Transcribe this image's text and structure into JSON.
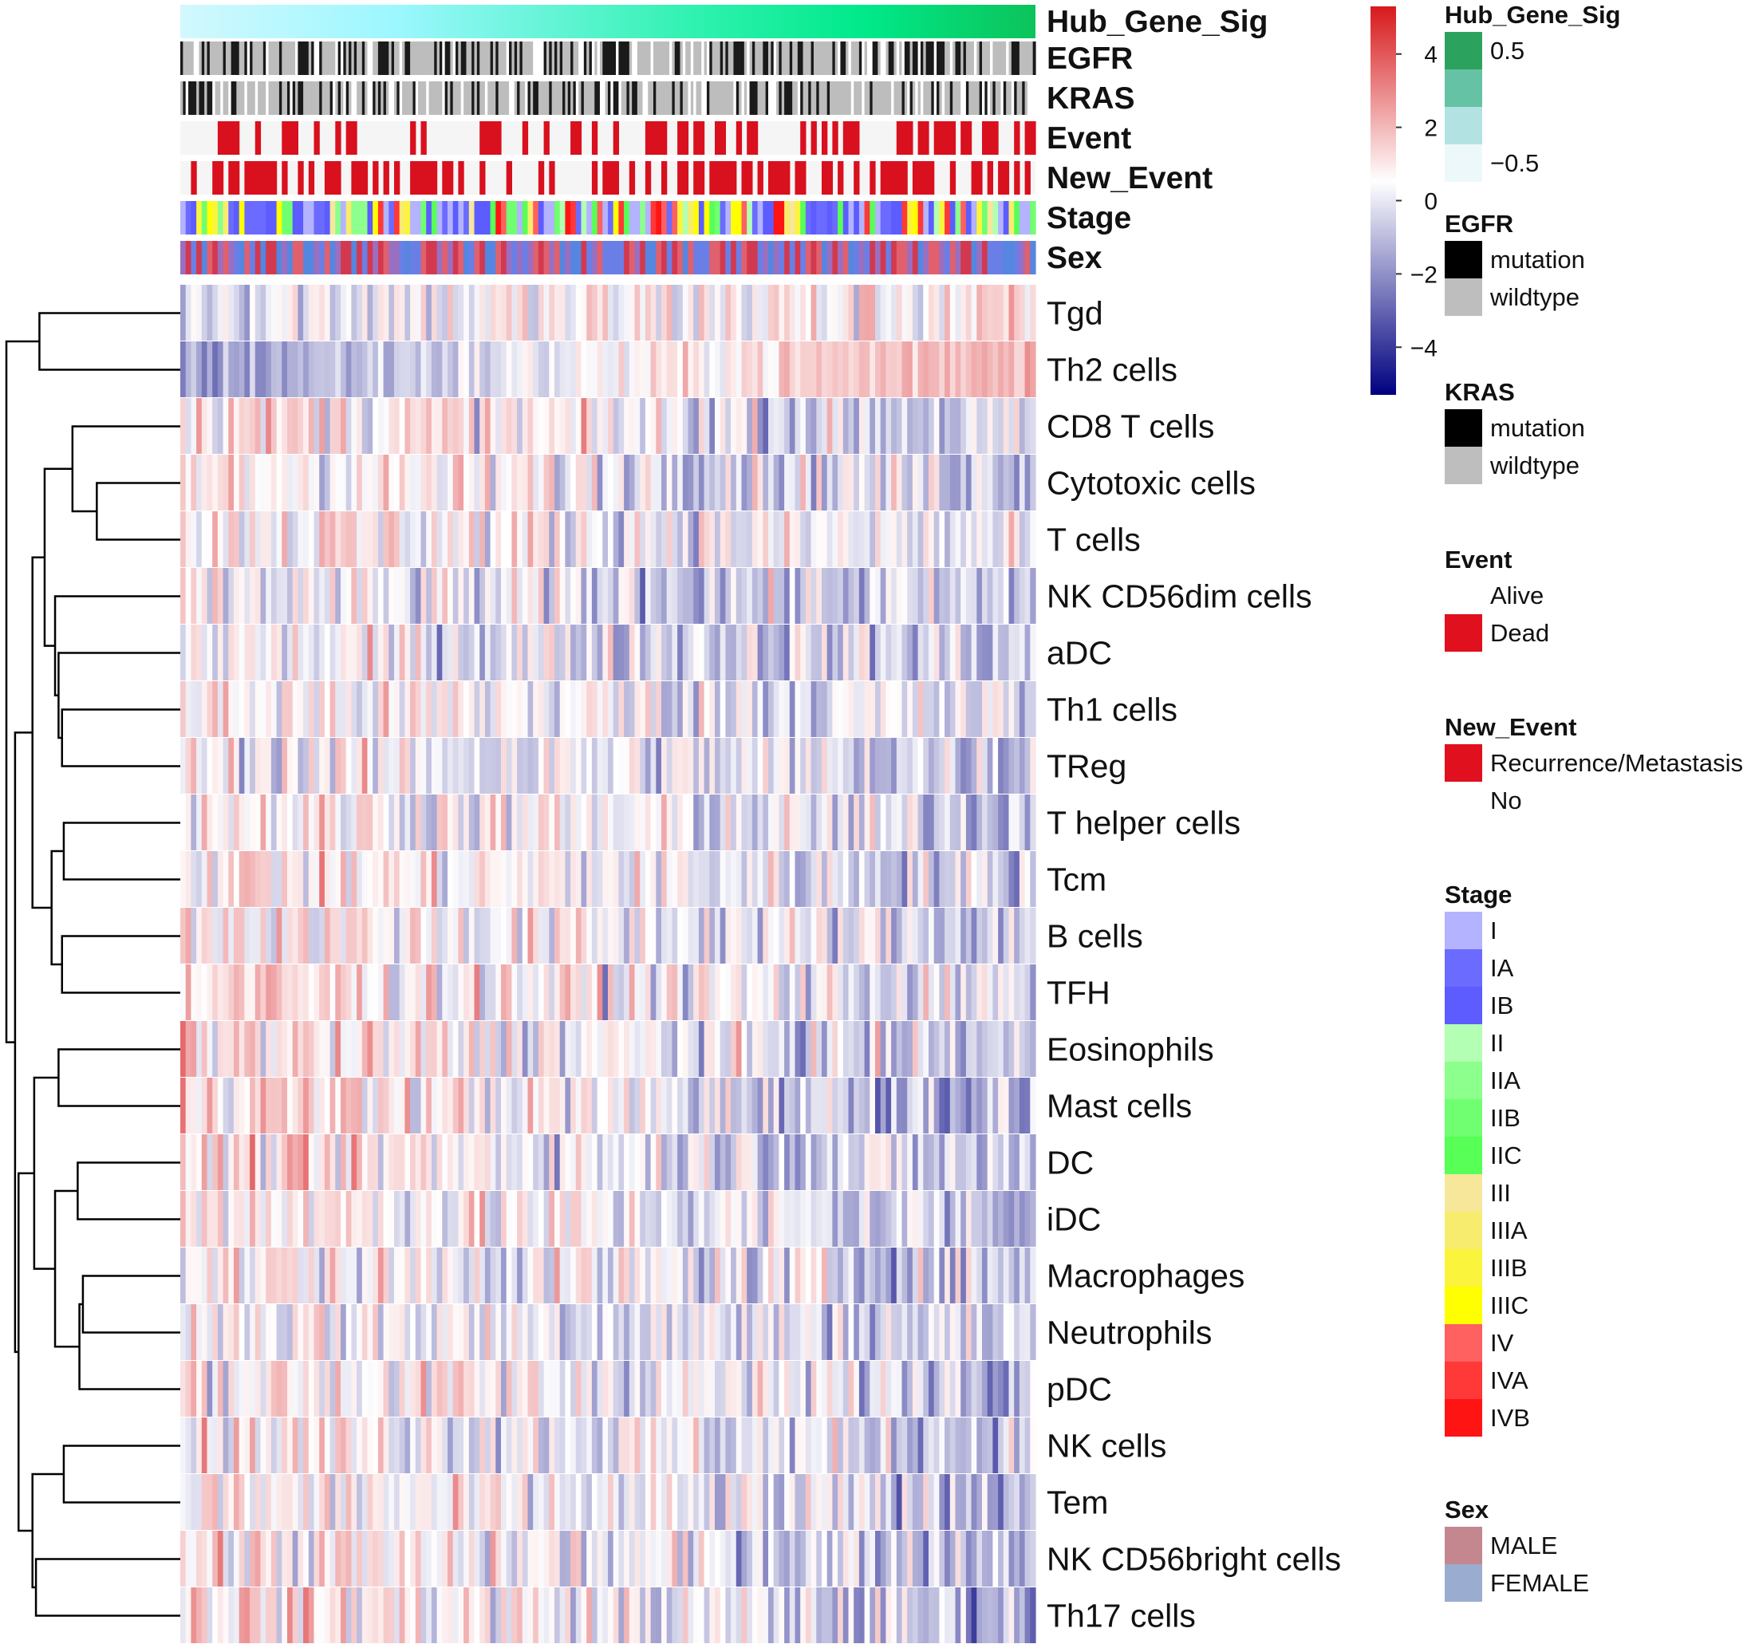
{
  "chart_data": {
    "type": "heatmap",
    "title": "",
    "n_samples": 160,
    "rows": [
      "Tgd",
      "Th2 cells",
      "CD8 T cells",
      "Cytotoxic cells",
      "T cells",
      "NK CD56dim cells",
      "aDC",
      "Th1 cells",
      "TReg",
      "T helper cells",
      "Tcm",
      "B cells",
      "TFH",
      "Eosinophils",
      "Mast cells",
      "DC",
      "iDC",
      "Macrophages",
      "Neutrophils",
      "pDC",
      "NK cells",
      "Tem",
      "NK CD56bright cells",
      "Th17 cells"
    ],
    "row_trend": [
      0.3,
      2.0,
      -1.0,
      -0.6,
      -0.6,
      -0.5,
      -0.5,
      -0.5,
      -0.5,
      -0.8,
      -0.8,
      -0.8,
      -0.8,
      -1.0,
      -1.4,
      -1.0,
      -1.0,
      -0.7,
      -0.6,
      -0.7,
      -0.8,
      -0.7,
      -0.8,
      -1.2
    ],
    "row_offset": [
      -0.2,
      -2.0,
      0.9,
      0.5,
      0.6,
      -0.2,
      0.0,
      0.3,
      0.1,
      0.6,
      0.7,
      0.7,
      0.9,
      0.8,
      1.2,
      0.8,
      0.8,
      0.4,
      0.3,
      0.6,
      0.6,
      0.3,
      0.5,
      1.0
    ],
    "annotation_tracks": [
      "Hub_Gene_Sig",
      "EGFR",
      "KRAS",
      "Event",
      "New_Event",
      "Stage",
      "Sex"
    ],
    "color_scale": {
      "min": -5,
      "max": 5,
      "low": "#000080",
      "mid": "#ffffff",
      "high": "#d7191c",
      "ticks": [
        4,
        2,
        0,
        -2,
        -4
      ],
      "tick_labels": [
        "4",
        "2",
        "0",
        "−2",
        "−4"
      ]
    },
    "dendrogram": "hierarchical clustering of rows",
    "legends": [
      {
        "title": "Hub_Gene_Sig",
        "items": [
          {
            "label": "0.5",
            "color": "#2ca25f"
          },
          {
            "label": "",
            "color": "#66c2a4"
          },
          {
            "label": "",
            "color": "#b2e2e2"
          },
          {
            "label": "−0.5",
            "color": "#edf8fb"
          }
        ]
      },
      {
        "title": "EGFR",
        "items": [
          {
            "label": "mutation",
            "color": "#000000"
          },
          {
            "label": "wildtype",
            "color": "#bebebe"
          }
        ]
      },
      {
        "title": "KRAS",
        "items": [
          {
            "label": "mutation",
            "color": "#000000"
          },
          {
            "label": "wildtype",
            "color": "#bebebe"
          }
        ]
      },
      {
        "title": "Event",
        "items": [
          {
            "label": "Alive",
            "color": "#ffffff"
          },
          {
            "label": "Dead",
            "color": "#e0101e"
          }
        ]
      },
      {
        "title": "New_Event",
        "items": [
          {
            "label": "Recurrence/Metastasis",
            "color": "#e0101e"
          },
          {
            "label": "No",
            "color": "#ffffff"
          }
        ]
      },
      {
        "title": "Stage",
        "items": [
          {
            "label": "I",
            "color": "#b3b3ff"
          },
          {
            "label": "IA",
            "color": "#6b6bff"
          },
          {
            "label": "IB",
            "color": "#5c5cff"
          },
          {
            "label": "II",
            "color": "#b3ffb3"
          },
          {
            "label": "IIA",
            "color": "#8cff8c"
          },
          {
            "label": "IIB",
            "color": "#70ff70"
          },
          {
            "label": "IIC",
            "color": "#57ff57"
          },
          {
            "label": "III",
            "color": "#f6e79a"
          },
          {
            "label": "IIIA",
            "color": "#f8ec6e"
          },
          {
            "label": "IIIB",
            "color": "#fbf43c"
          },
          {
            "label": "IIIC",
            "color": "#ffff00"
          },
          {
            "label": "IV",
            "color": "#ff6060"
          },
          {
            "label": "IVA",
            "color": "#ff3838"
          },
          {
            "label": "IVB",
            "color": "#ff1414"
          }
        ]
      },
      {
        "title": "Sex",
        "items": [
          {
            "label": "MALE",
            "color": "#c4868f"
          },
          {
            "label": "FEMALE",
            "color": "#9aacd0"
          }
        ]
      }
    ]
  }
}
